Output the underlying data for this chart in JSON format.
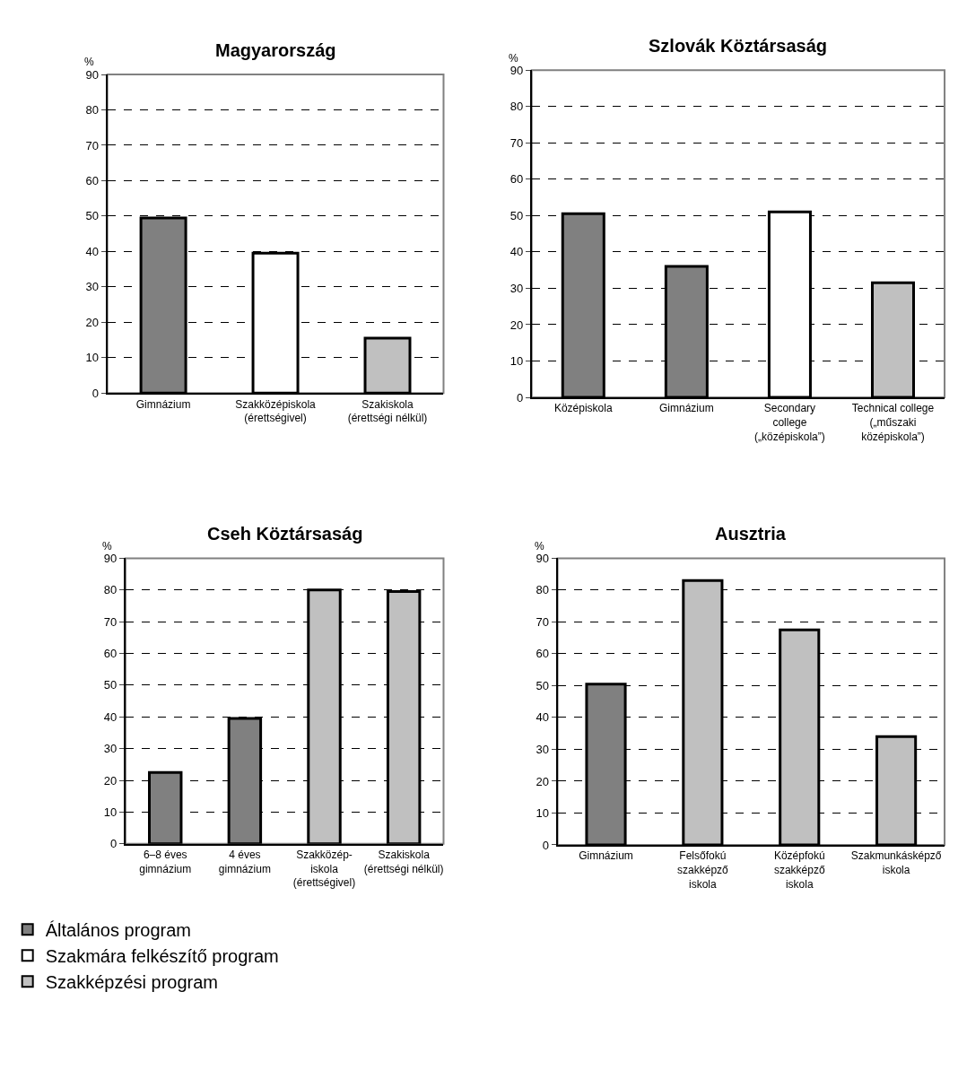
{
  "chart_data": [
    {
      "type": "bar",
      "title": "Magyarország",
      "ylabel": "%",
      "categories": [
        "Gimnázium",
        "Szakközépiskola\n(érettségivel)",
        "Szakiskola\n(érettségi nélkül)"
      ],
      "ylim": [
        0,
        90
      ],
      "yticks": [
        0,
        10,
        20,
        30,
        40,
        50,
        60,
        70,
        80,
        90
      ],
      "grid": "y",
      "legend": "bottom left",
      "series": [
        {
          "name": "Általános program",
          "color": "#808080",
          "values": [
            49.5,
            null,
            null
          ]
        },
        {
          "name": "Szakmára felkészítő program",
          "color": "#ffffff",
          "values": [
            null,
            39.5,
            null
          ]
        },
        {
          "name": "Szakképzési program",
          "color": "#c0c0c0",
          "values": [
            null,
            null,
            15.5
          ]
        }
      ]
    },
    {
      "type": "bar",
      "title": "Szlovák Köztársaság",
      "ylabel": "%",
      "categories": [
        "Középiskola",
        "Gimnázium",
        "Secondary\ncollege\n(„középiskola”)",
        "Technical college\n(„műszaki\nközépiskola”)"
      ],
      "ylim": [
        0,
        90
      ],
      "yticks": [
        0,
        10,
        20,
        30,
        40,
        50,
        60,
        70,
        80,
        90
      ],
      "grid": "y",
      "legend": "bottom left",
      "series": [
        {
          "name": "Általános program",
          "color": "#808080",
          "values": [
            50.5,
            36,
            null,
            null
          ]
        },
        {
          "name": "Szakmára felkészítő program",
          "color": "#ffffff",
          "values": [
            null,
            null,
            51,
            null
          ]
        },
        {
          "name": "Szakképzési program",
          "color": "#c0c0c0",
          "values": [
            null,
            null,
            null,
            31.5
          ]
        }
      ]
    },
    {
      "type": "bar",
      "title": "Cseh Köztársaság",
      "ylabel": "%",
      "categories": [
        "6–8 éves\ngimnázium",
        "4 éves\ngimnázium",
        "Szakközép-\niskola\n(érettségivel)",
        "Szakiskola\n(érettségi nélkül)"
      ],
      "ylim": [
        0,
        90
      ],
      "yticks": [
        0,
        10,
        20,
        30,
        40,
        50,
        60,
        70,
        80,
        90
      ],
      "grid": "y",
      "legend": "bottom left",
      "series": [
        {
          "name": "Általános program",
          "color": "#808080",
          "values": [
            22.5,
            39.5,
            null,
            null
          ]
        },
        {
          "name": "Szakképzési program",
          "color": "#c0c0c0",
          "values": [
            null,
            null,
            80,
            79.5
          ]
        }
      ]
    },
    {
      "type": "bar",
      "title": "Ausztria",
      "ylabel": "%",
      "categories": [
        "Gimnázium",
        "Felsőfokú\nszakképző\niskola",
        "Középfokú\nszakképző\niskola",
        "Szakmunkásképző\niskola"
      ],
      "ylim": [
        0,
        90
      ],
      "yticks": [
        0,
        10,
        20,
        30,
        40,
        50,
        60,
        70,
        80,
        90
      ],
      "grid": "y",
      "legend": "bottom left",
      "series": [
        {
          "name": "Általános program",
          "color": "#808080",
          "values": [
            50.5,
            null,
            null,
            null
          ]
        },
        {
          "name": "Szakképzési program",
          "color": "#c0c0c0",
          "values": [
            null,
            83,
            67.5,
            34
          ]
        }
      ]
    }
  ]
}
